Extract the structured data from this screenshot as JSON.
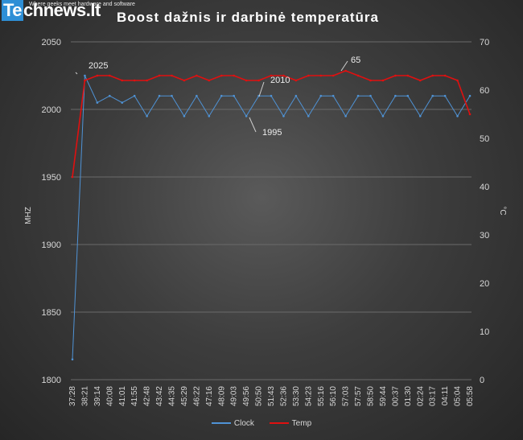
{
  "logo": {
    "prefix": "Te",
    "name": "chnews",
    "tld": ".lt",
    "tagline": "Where geeks meet hardware and software"
  },
  "colors": {
    "clock": "#4f93d6",
    "temp": "#e01010",
    "grid": "#6a6a6a",
    "text": "#d8d8d8"
  },
  "chart_data": {
    "type": "line",
    "title": "Boost  dažnis  ir  darbinė  temperatūra",
    "ylabel": "MHZ",
    "y2label": "°C",
    "ylim": [
      1800,
      2050
    ],
    "y2lim": [
      0,
      70
    ],
    "yticks": [
      "1800",
      "1850",
      "1900",
      "1950",
      "2000",
      "2050"
    ],
    "y2ticks": [
      "0",
      "10",
      "20",
      "30",
      "40",
      "50",
      "60",
      "70"
    ],
    "categories": [
      "37:28",
      "38:21",
      "39:14",
      "40:08",
      "41:01",
      "41:55",
      "42:48",
      "43:42",
      "44:35",
      "45:29",
      "46:22",
      "47:16",
      "48:09",
      "49:03",
      "49:56",
      "50:50",
      "51:43",
      "52:36",
      "53:30",
      "54:23",
      "55:16",
      "56:10",
      "57:03",
      "57:57",
      "58:50",
      "59:44",
      "00:37",
      "01:30",
      "02:24",
      "03:17",
      "04:11",
      "05:04",
      "05:58"
    ],
    "series": [
      {
        "name": "Clock",
        "axis": "left",
        "values": [
          1815,
          2025,
          2005,
          2010,
          2005,
          2010,
          1995,
          2010,
          2010,
          1995,
          2010,
          1995,
          2010,
          2010,
          1995,
          2010,
          2010,
          1995,
          2010,
          1995,
          2010,
          2010,
          1995,
          2010,
          2010,
          1995,
          2010,
          2010,
          1995,
          2010,
          2010,
          1995,
          2010
        ]
      },
      {
        "name": "Temp",
        "axis": "right",
        "values": [
          42,
          62,
          63,
          63,
          62,
          62,
          62,
          63,
          63,
          62,
          63,
          62,
          63,
          63,
          62,
          62,
          63,
          63,
          62,
          63,
          63,
          63,
          64,
          63,
          62,
          62,
          63,
          63,
          62,
          63,
          63,
          62,
          55
        ]
      }
    ],
    "annotations": [
      {
        "text": "2025"
      },
      {
        "text": "2010"
      },
      {
        "text": "1995"
      },
      {
        "text": "65"
      }
    ]
  }
}
